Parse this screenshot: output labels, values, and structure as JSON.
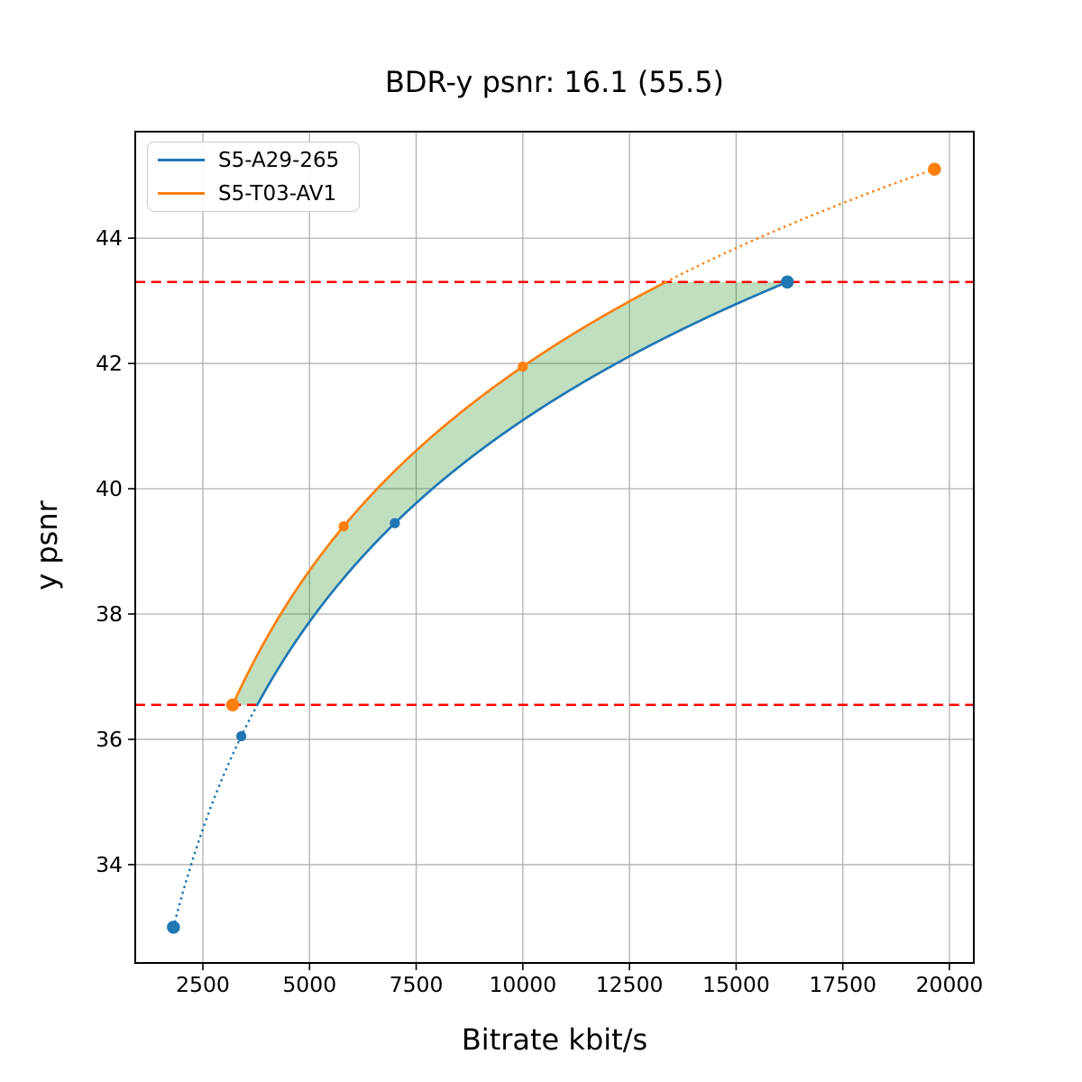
{
  "chart_data": {
    "type": "line",
    "title": "BDR-y psnr: 16.1 (55.5)",
    "xlabel": "Bitrate kbit/s",
    "ylabel": "y psnr",
    "grid": true,
    "legend_position": "upper left",
    "xlim": [
      915,
      20571
    ],
    "ylim": [
      32.43,
      45.7
    ],
    "x_ticks": [
      2500,
      5000,
      7500,
      10000,
      12500,
      15000,
      17500,
      20000
    ],
    "y_ticks": [
      34,
      36,
      38,
      40,
      42,
      44
    ],
    "series": [
      {
        "name": "S5-A29-265",
        "color": "#1f77b4",
        "x": [
          1810,
          3400,
          7000,
          16200
        ],
        "y": [
          33.0,
          36.05,
          39.45,
          43.3
        ],
        "note": "dotted below lower overlap bound, solid inside overlap"
      },
      {
        "name": "S5-T03-AV1",
        "color": "#ff7f0e",
        "x": [
          3200,
          5800,
          10000,
          19650
        ],
        "y": [
          36.55,
          39.4,
          41.95,
          45.1
        ],
        "note": "solid inside overlap, dotted above upper overlap bound"
      }
    ],
    "hlines": [
      {
        "y": 36.55,
        "color": "#ff0000",
        "style": "dashed",
        "name": "lower-overlap-bound"
      },
      {
        "y": 43.3,
        "color": "#ff0000",
        "style": "dashed",
        "name": "upper-overlap-bound"
      }
    ],
    "shaded_region": {
      "between": [
        "S5-T03-AV1",
        "S5-A29-265"
      ],
      "y_range": [
        36.55,
        43.3
      ],
      "color": "#008000",
      "alpha": 0.25
    },
    "colors": {
      "grid": "#b0b0b0",
      "spine": "#000000",
      "text": "#000000",
      "background": "#ffffff"
    }
  }
}
